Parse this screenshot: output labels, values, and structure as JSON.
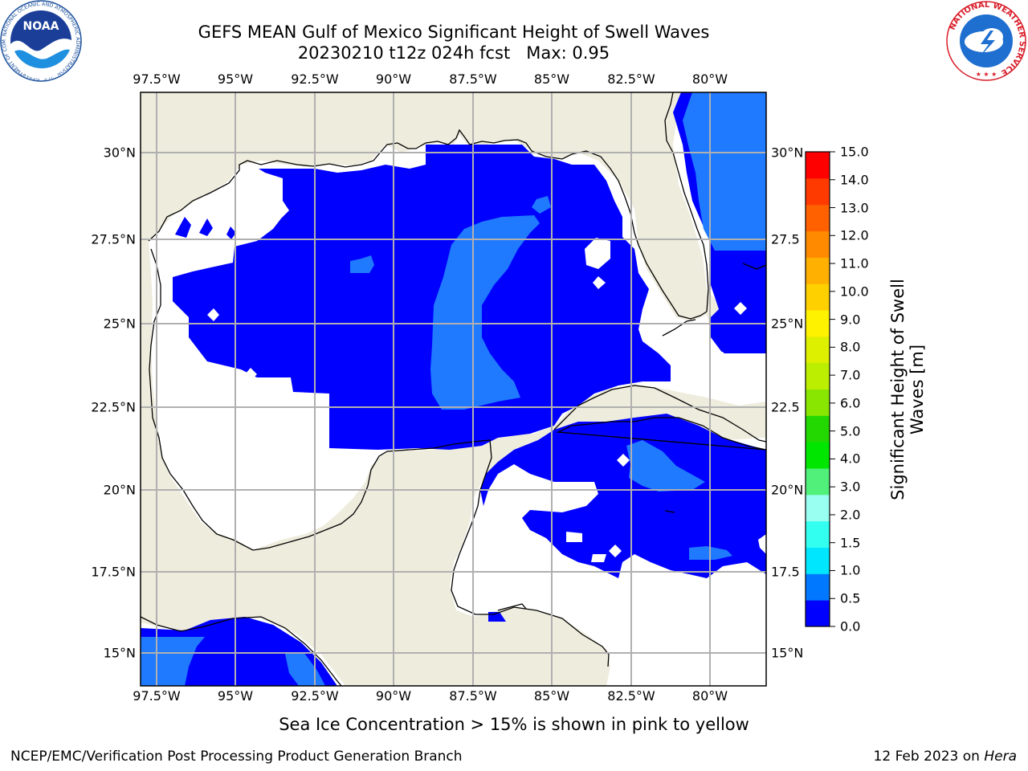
{
  "header": {
    "title_line1": "GEFS MEAN Gulf of Mexico Significant Height of Swell Waves",
    "title_line2": "20230210 t12z 024h fcst   Max: 0.95"
  },
  "map": {
    "lon_ticks": [
      "97.5°W",
      "95°W",
      "92.5°W",
      "90°W",
      "87.5°W",
      "85°W",
      "82.5°W",
      "80°W"
    ],
    "lat_ticks": [
      "30°N",
      "27.5°N",
      "25°N",
      "22.5°N",
      "20°N",
      "17.5°N",
      "15°N"
    ],
    "lat_ticks_right": [
      "30°N",
      "27.5",
      "25°N",
      "22.5",
      "20°N",
      "17.5",
      "15°N"
    ],
    "colors": {
      "land": "#EEECDD",
      "no_data": "#FFFFFF",
      "swell_0_0.5": "#0000FF",
      "swell_0.5_1.0": "#1F7AFF",
      "coast": "#000000",
      "grid": "#B0B0B0"
    }
  },
  "colorbar": {
    "label": "Significant Height of Swell Waves [m]",
    "ticks": [
      "15.0",
      "14.0",
      "13.0",
      "12.0",
      "11.0",
      "10.0",
      "9.0",
      "8.0",
      "7.0",
      "6.0",
      "5.0",
      "4.0",
      "3.0",
      "2.0",
      "1.5",
      "1.0",
      "0.5",
      "0.0"
    ],
    "colors_bottom_to_top": [
      "#0000FF",
      "#0078FF",
      "#00E6FF",
      "#33FFF0",
      "#99FFF0",
      "#50F07A",
      "#00E600",
      "#22D800",
      "#88E600",
      "#BBEE00",
      "#DDF000",
      "#FFF200",
      "#FFD000",
      "#FFB000",
      "#FF8A00",
      "#FF6000",
      "#FF3A00",
      "#FF0000"
    ]
  },
  "footer": {
    "note": "Sea Ice Concentration > 15% is shown in pink to yellow",
    "credit": "NCEP/EMC/Verification Post Processing Product Generation Branch",
    "date": "12 Feb 2023 on",
    "host": "Hera"
  },
  "logos": {
    "noaa_text": "NOAA",
    "noaa_ring": "NATIONAL OCEANIC AND ATMOSPHERIC ADMINISTRATION · U.S. DEPARTMENT OF COMMERCE",
    "nws_ring": "NATIONAL WEATHER SERVICE"
  }
}
